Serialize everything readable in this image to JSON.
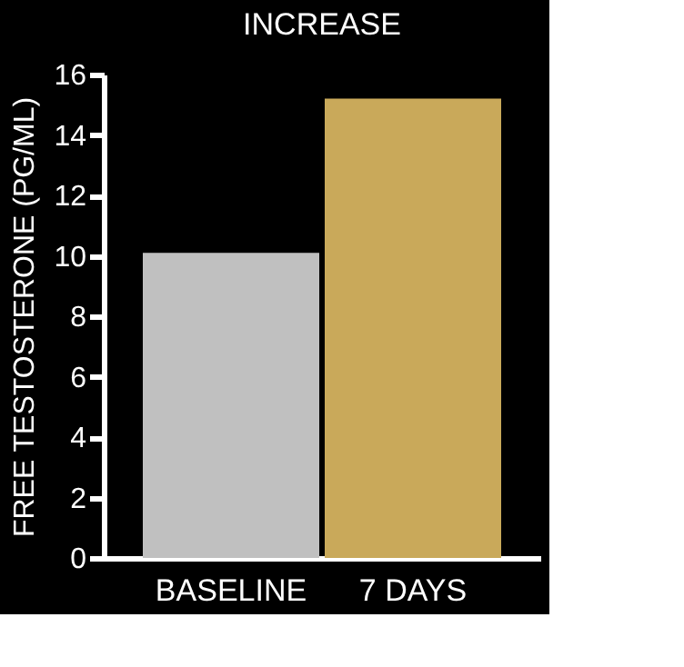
{
  "chart_data": {
    "type": "bar",
    "title": "INCREASE",
    "ylabel": "FREE TESTOSTERONE (PG/ML)",
    "categories": [
      "BASELINE",
      "7 DAYS"
    ],
    "values": [
      10.1,
      15.2
    ],
    "colors": [
      "#c0c0c0",
      "#c9a95a"
    ],
    "ylim": [
      0,
      16
    ],
    "yticks": [
      0,
      2,
      4,
      6,
      8,
      10,
      12,
      14,
      16
    ],
    "grid": false
  }
}
